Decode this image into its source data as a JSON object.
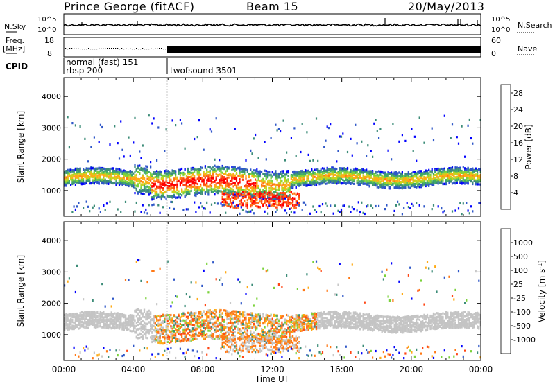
{
  "header": {
    "station": "Prince George (fitACF)",
    "beam": "Beam 15",
    "date": "20/May/2013"
  },
  "sky_panel": {
    "left_label": "N.Sky",
    "right_label": "N.Search",
    "left_ticks": [
      "10^5",
      "10^0"
    ],
    "right_ticks": [
      "10^5",
      "10^0"
    ]
  },
  "freq_panel": {
    "left_label_line1": "Freq.",
    "left_label_line2": "[MHz]",
    "right_label": "Nave",
    "left_ticks": [
      "18",
      "8"
    ],
    "right_ticks": [
      "60",
      "0"
    ]
  },
  "cpid": {
    "label": "CPID",
    "entries": [
      "normal (fast) 151",
      "rbsp 200",
      "twofsound 3501"
    ]
  },
  "colors": {
    "power_scale": [
      "#0000ff",
      "#2f57c8",
      "#3c8c78",
      "#3fa86a",
      "#7ad23a",
      "#c8d21e",
      "#ffaa14",
      "#ff7814",
      "#ff4614",
      "#ff0000"
    ],
    "velocity_scale": [
      "#0000ff",
      "#2f57c8",
      "#3c8c78",
      "#7ad23a",
      "#c8c8c8",
      "#ffaa14",
      "#ff7814",
      "#ff4614",
      "#ff0000"
    ],
    "ground_scatter": "#c4c4c4"
  },
  "chart_data": [
    {
      "type": "heatmap",
      "title": "",
      "xlabel": "",
      "ylabel": "Slant Range [km]",
      "x_ticks": [
        "00:00",
        "04:00",
        "08:00",
        "12:00",
        "16:00",
        "20:00",
        "00:00"
      ],
      "xlim_hours": [
        0,
        24
      ],
      "ylim": [
        180,
        4600
      ],
      "y_ticks": [
        1000,
        2000,
        3000,
        4000
      ],
      "colorbar_label": "Power [dB]",
      "colorbar_ticks": [
        4,
        8,
        12,
        16,
        20,
        24,
        28
      ],
      "colorbar_range": [
        0,
        30
      ]
    },
    {
      "type": "heatmap",
      "title": "",
      "xlabel": "Time UT",
      "ylabel": "Slant Range [km]",
      "x_ticks": [
        "00:00",
        "04:00",
        "08:00",
        "12:00",
        "16:00",
        "20:00",
        "00:00"
      ],
      "xlim_hours": [
        0,
        24
      ],
      "ylim": [
        180,
        4600
      ],
      "y_ticks": [
        1000,
        2000,
        3000,
        4000
      ],
      "colorbar_label": "Velocity [m s",
      "colorbar_label_sup": "-1",
      "colorbar_label_close": "]",
      "colorbar_ticks": [
        "1000",
        "500",
        "100",
        "25",
        "-25",
        "-100",
        "-500",
        "-1000"
      ]
    }
  ]
}
